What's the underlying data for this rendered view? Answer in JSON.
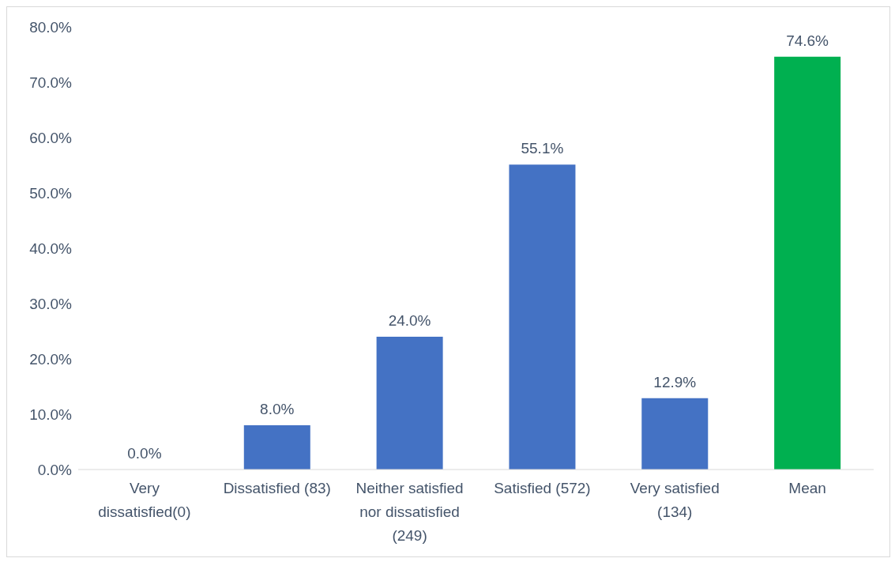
{
  "chart_data": {
    "type": "bar",
    "categories": [
      "Very dissatisfied(0)",
      "Dissatisfied (83)",
      "Neither satisfied nor dissatisfied (249)",
      "Satisfied (572)",
      "Very satisfied (134)",
      "Mean"
    ],
    "values": [
      0.0,
      8.0,
      24.0,
      55.1,
      12.9,
      74.6
    ],
    "colors": [
      "#4472c4",
      "#4472c4",
      "#4472c4",
      "#4472c4",
      "#4472c4",
      "#00b050"
    ],
    "value_labels": [
      "0.0%",
      "8.0%",
      "24.0%",
      "55.1%",
      "12.9%",
      "74.6%"
    ],
    "ylim": [
      0,
      80
    ],
    "yticks": [
      {
        "value": 0,
        "label": "0.0%"
      },
      {
        "value": 10,
        "label": "10.0%"
      },
      {
        "value": 20,
        "label": "20.0%"
      },
      {
        "value": 30,
        "label": "30.0%"
      },
      {
        "value": 40,
        "label": "40.0%"
      },
      {
        "value": 50,
        "label": "50.0%"
      },
      {
        "value": 60,
        "label": "60.0%"
      },
      {
        "value": 70,
        "label": "70.0%"
      },
      {
        "value": 80,
        "label": "80.0%"
      }
    ],
    "legend": false
  }
}
